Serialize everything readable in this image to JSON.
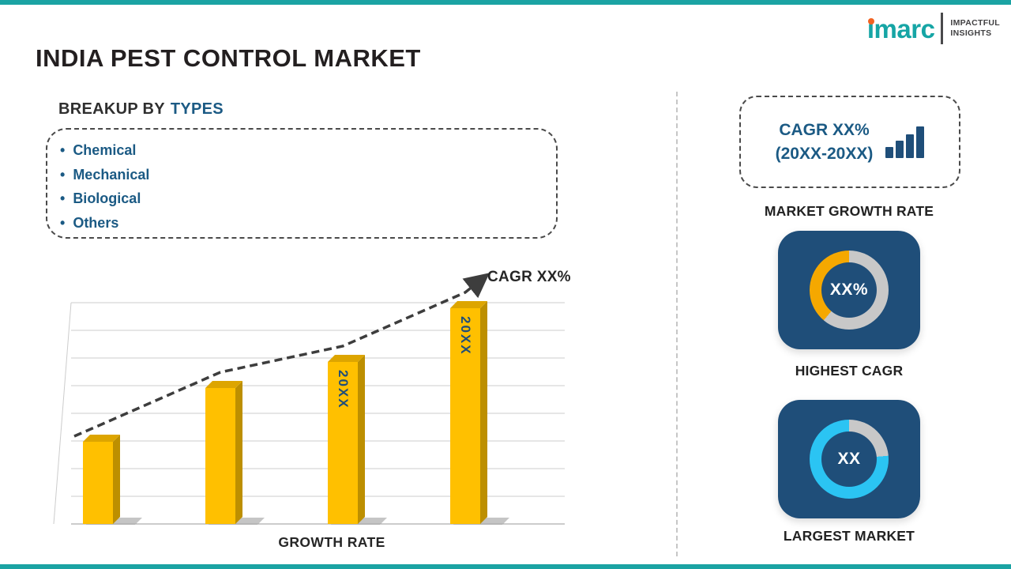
{
  "page": {
    "title": "INDIA PEST CONTROL MARKET"
  },
  "theme": {
    "accent_teal": "#1BA3A3",
    "navy": "#1F4E79",
    "blue_text": "#1B5A84",
    "gold": "#FFC000",
    "cyan": "#2BC4F3",
    "amber": "#F5A800",
    "ring_gray": "#C8C8C8"
  },
  "logo": {
    "brand": "imarc",
    "tagline": [
      "IMPACTFUL",
      "INSIGHTS"
    ]
  },
  "breakup": {
    "heading": "BREAKUP BY",
    "heading_accent": "TYPES",
    "items": [
      "Chemical",
      "Mechanical",
      "Biological",
      "Others"
    ]
  },
  "chart_data": {
    "type": "bar",
    "title": "",
    "categories": [
      "",
      "",
      "20XX",
      "20XX"
    ],
    "values": [
      38,
      63,
      75,
      100
    ],
    "bar_labels": [
      "",
      "",
      "20XX",
      "20XX"
    ],
    "bar_color": "#FFC000",
    "xlabel": "GROWTH RATE",
    "ylabel": "",
    "ylim": [
      0,
      100
    ],
    "grid": "horizontal",
    "legend": "none",
    "trend": {
      "label": "CAGR XX%",
      "style": "dashed-arrow"
    }
  },
  "sidebar": {
    "growth_box": {
      "line1": "CAGR XX%",
      "line2": "(20XX-20XX)",
      "caption": "MARKET GROWTH RATE"
    },
    "highest_cagr": {
      "value": "XX%",
      "caption": "HIGHEST CAGR",
      "segments": [
        {
          "color": "#C8C8C8",
          "from": 0,
          "to": 220
        },
        {
          "color": "#F5A800",
          "from": 220,
          "to": 360
        }
      ]
    },
    "largest_market": {
      "value": "XX",
      "caption": "LARGEST MARKET",
      "segments": [
        {
          "color": "#C8C8C8",
          "from": 0,
          "to": 85
        },
        {
          "color": "#2BC4F3",
          "from": 85,
          "to": 360
        }
      ]
    }
  }
}
